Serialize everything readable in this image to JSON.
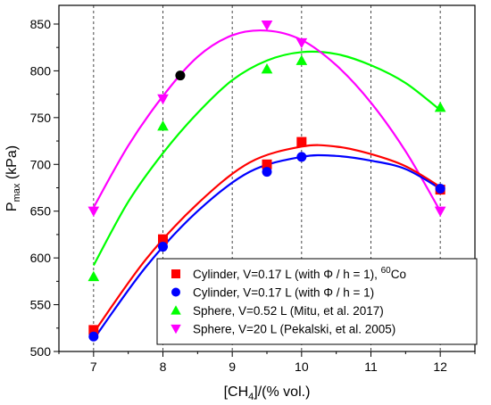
{
  "chart_data": {
    "type": "scatter",
    "title": "",
    "xlabel": {
      "main": "[CH",
      "sub": "4",
      "rest": "]/(% vol.)"
    },
    "ylabel": {
      "main": "P",
      "sub": "max",
      "rest": " (kPa)"
    },
    "xlim": [
      6.5,
      12.5
    ],
    "ylim": [
      500,
      870
    ],
    "xticks": [
      7,
      8,
      9,
      10,
      11,
      12
    ],
    "yticks": [
      500,
      550,
      600,
      650,
      700,
      750,
      800,
      850
    ],
    "grid": "vertical dashed at x ticks",
    "legend_position": "bottom-right",
    "series": [
      {
        "name": "Cylinder, V=0.17 L (with Φ / h = 1), ",
        "name_sup": "60",
        "name_tail": "Co",
        "marker": "square",
        "color": "#ff0000",
        "x": [
          7,
          8,
          9.5,
          10,
          12
        ],
        "y": [
          523,
          620,
          700,
          724,
          673
        ],
        "fit": {
          "x": [
            7,
            7.75,
            8.5,
            9.25,
            10,
            10.5,
            11,
            11.5,
            12
          ],
          "y": [
            520,
            598,
            658,
            702,
            719,
            719,
            711,
            698,
            676
          ]
        }
      },
      {
        "name": "Cylinder, V=0.17 L (with Φ / h = 1)",
        "marker": "circle",
        "color": "#0000ff",
        "x": [
          7,
          8,
          9.5,
          10,
          12
        ],
        "y": [
          516,
          612,
          692,
          708,
          674
        ],
        "fit": {
          "x": [
            7,
            7.75,
            8.5,
            9.25,
            10,
            10.5,
            11,
            11.5,
            12
          ],
          "y": [
            513,
            590,
            650,
            692,
            708,
            709,
            704,
            695,
            674
          ]
        }
      },
      {
        "name": "Sphere, V=0.52 L (Mitu, et al. 2017)",
        "marker": "triangle-up",
        "color": "#00ff00",
        "x": [
          7,
          8,
          9.5,
          10,
          12
        ],
        "y": [
          580,
          741,
          802,
          811,
          761
        ],
        "fit": {
          "x": [
            7,
            7.5,
            8,
            8.5,
            9,
            9.5,
            10,
            10.5,
            11,
            11.5,
            12
          ],
          "y": [
            592,
            660,
            712,
            755,
            790,
            811,
            820,
            818,
            806,
            787,
            758
          ]
        }
      },
      {
        "name": "Sphere, V=20 L (Pekalski, et al. 2005)",
        "marker": "triangle-down",
        "color": "#ff00ff",
        "x": [
          7,
          8,
          9.5,
          10,
          12
        ],
        "y": [
          650,
          770,
          849,
          830,
          650
        ],
        "fit": {
          "x": [
            7,
            7.5,
            8,
            8.5,
            9,
            9.5,
            10,
            10.5,
            11,
            11.5,
            12
          ],
          "y": [
            654,
            720,
            773,
            815,
            838,
            843,
            833,
            806,
            766,
            714,
            650
          ]
        }
      }
    ],
    "extra_points": [
      {
        "marker": "circle",
        "color": "#000000",
        "x": 8.25,
        "y": 795
      }
    ]
  }
}
